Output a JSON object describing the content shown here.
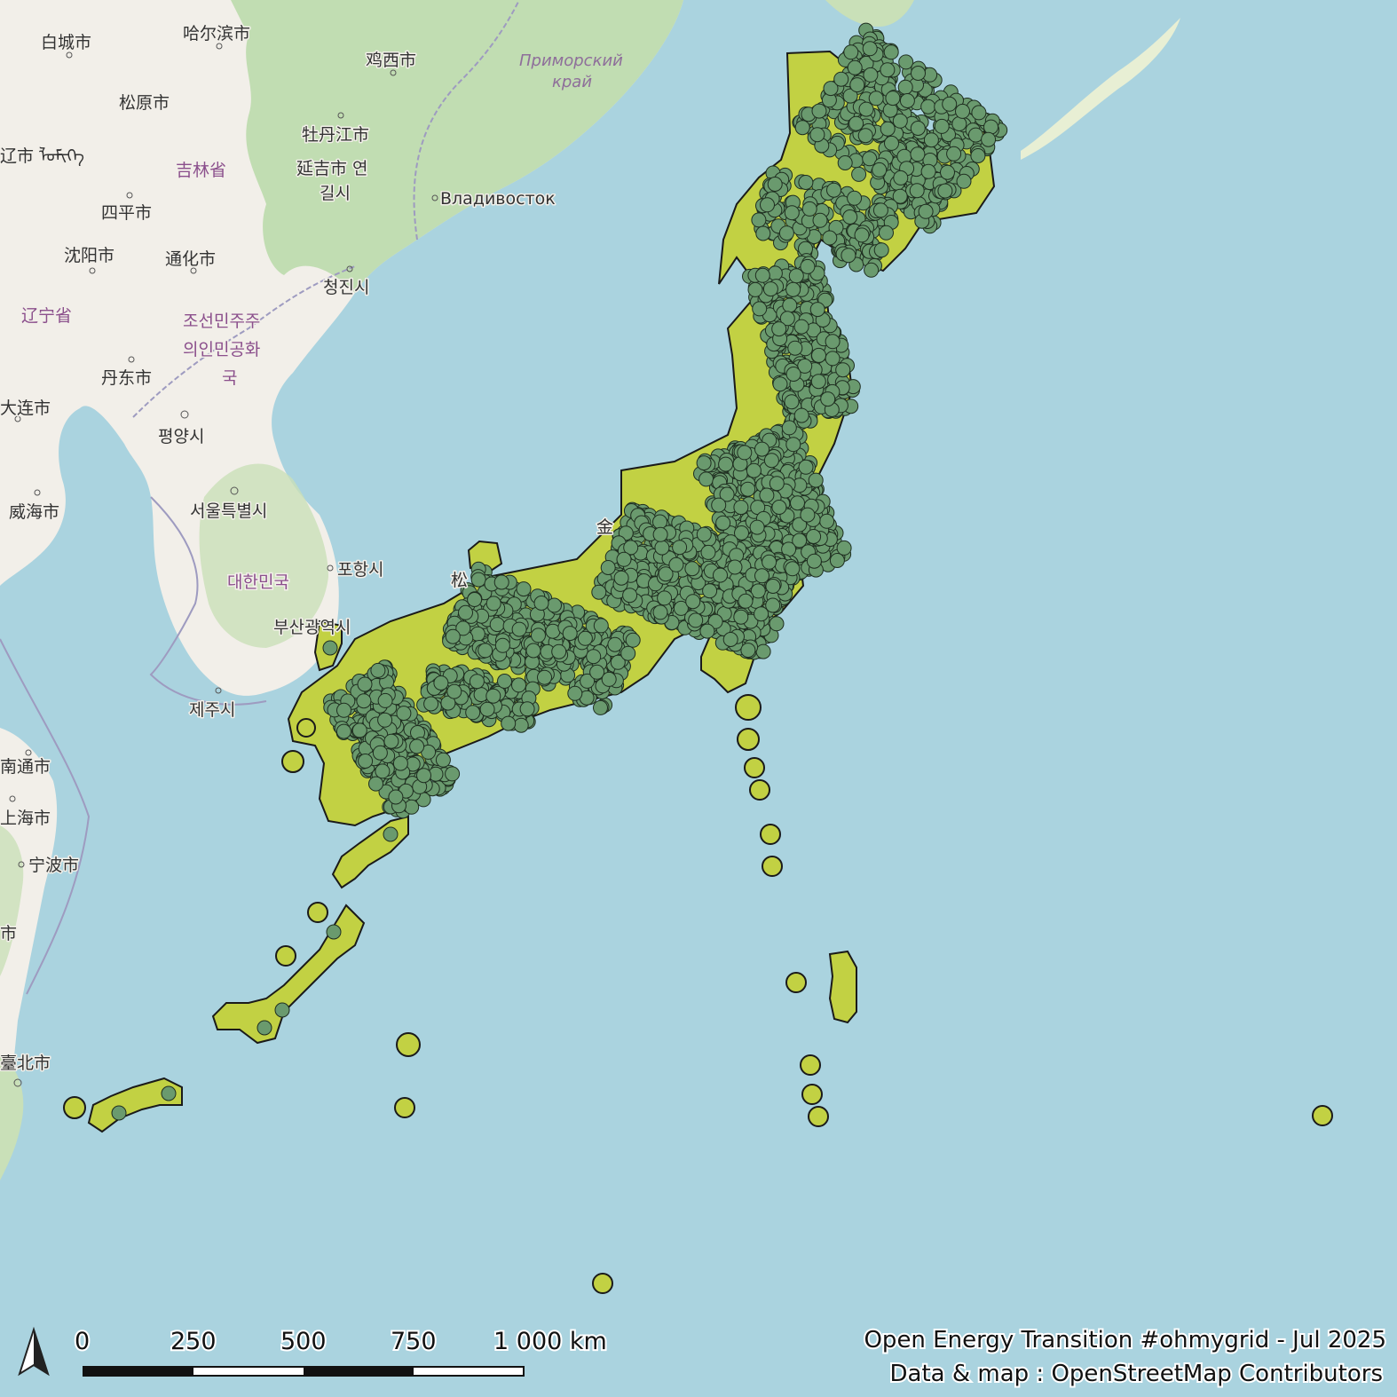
{
  "map": {
    "colors": {
      "sea": "#aad3df",
      "land": "#f2efe9",
      "forest": "#b8d9a8",
      "buffer": "#c2d143",
      "plant_point": "#6a9a6e",
      "boundary": "#9e9bc0"
    },
    "places": [
      {
        "name": "白城市"
      },
      {
        "name": "哈尔滨市"
      },
      {
        "name": "鸡西市"
      },
      {
        "name": "松原市"
      },
      {
        "name": "牡丹江市"
      },
      {
        "name": "延吉市 연"
      },
      {
        "name": "길시"
      },
      {
        "name": "辽市 ᠯᠣᠮᠢᠭᠡ"
      },
      {
        "name": "四平市"
      },
      {
        "name": "沈阳市"
      },
      {
        "name": "通化市"
      },
      {
        "name": "청진시"
      },
      {
        "name": "丹东市"
      },
      {
        "name": "大连市"
      },
      {
        "name": "평양시"
      },
      {
        "name": "威海市"
      },
      {
        "name": "서울특별시"
      },
      {
        "name": "포항시"
      },
      {
        "name": "부산광역시"
      },
      {
        "name": "제주시"
      },
      {
        "name": "南通市"
      },
      {
        "name": "上海市"
      },
      {
        "name": "宁波市"
      },
      {
        "name": "市"
      },
      {
        "name": "臺北市"
      },
      {
        "name": "Владивосток"
      },
      {
        "name": "金"
      },
      {
        "name": "松"
      }
    ],
    "regions": [
      {
        "name": "吉林省"
      },
      {
        "name": "辽宁省"
      },
      {
        "name": "조선민주주"
      },
      {
        "name": "의인민공화"
      },
      {
        "name": "국"
      },
      {
        "name": "대한민국"
      }
    ],
    "region_italic": {
      "line1": "Приморский",
      "line2": "край"
    },
    "scale_bar": {
      "labels": [
        "0",
        "250",
        "500",
        "750",
        "1 000 km"
      ]
    },
    "north_arrow_icon": "north-arrow-icon",
    "credits": {
      "line1": "Open Energy Transition #ohmygrid - Jul 2025",
      "line2": "Data & map : OpenStreetMap Contributors"
    }
  }
}
